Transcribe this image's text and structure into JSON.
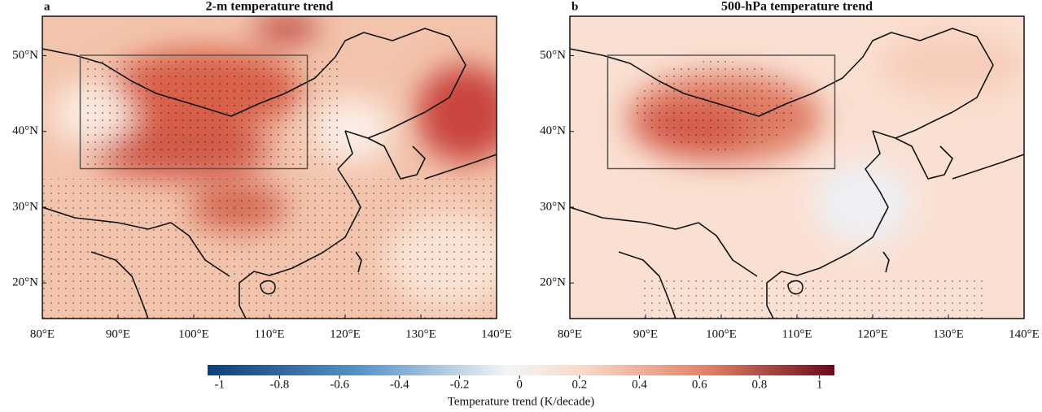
{
  "panels": [
    {
      "label": "a",
      "title": "2-m temperature trend"
    },
    {
      "label": "b",
      "title": "500-hPa temperature trend"
    }
  ],
  "map": {
    "xlim": [
      80,
      140
    ],
    "ylim": [
      15.3,
      55.2
    ],
    "xticks": [
      {
        "value": 80,
        "label": "80°E"
      },
      {
        "value": 90,
        "label": "90°E"
      },
      {
        "value": 100,
        "label": "100°E"
      },
      {
        "value": 110,
        "label": "110°E"
      },
      {
        "value": 120,
        "label": "120°E"
      },
      {
        "value": 130,
        "label": "130°E"
      },
      {
        "value": 140,
        "label": "140°E"
      }
    ],
    "yticks": [
      {
        "value": 20,
        "label": "20°N"
      },
      {
        "value": 30,
        "label": "30°N"
      },
      {
        "value": 40,
        "label": "40°N"
      },
      {
        "value": 50,
        "label": "50°N"
      }
    ]
  },
  "colorbar": {
    "lim": [
      -1.04,
      1.05
    ],
    "ticks": [
      -1,
      -0.8,
      -0.6,
      -0.4,
      -0.2,
      0,
      0.2,
      0.4,
      0.6,
      0.8,
      1
    ],
    "label": "Temperature trend (K/decade)"
  }
}
